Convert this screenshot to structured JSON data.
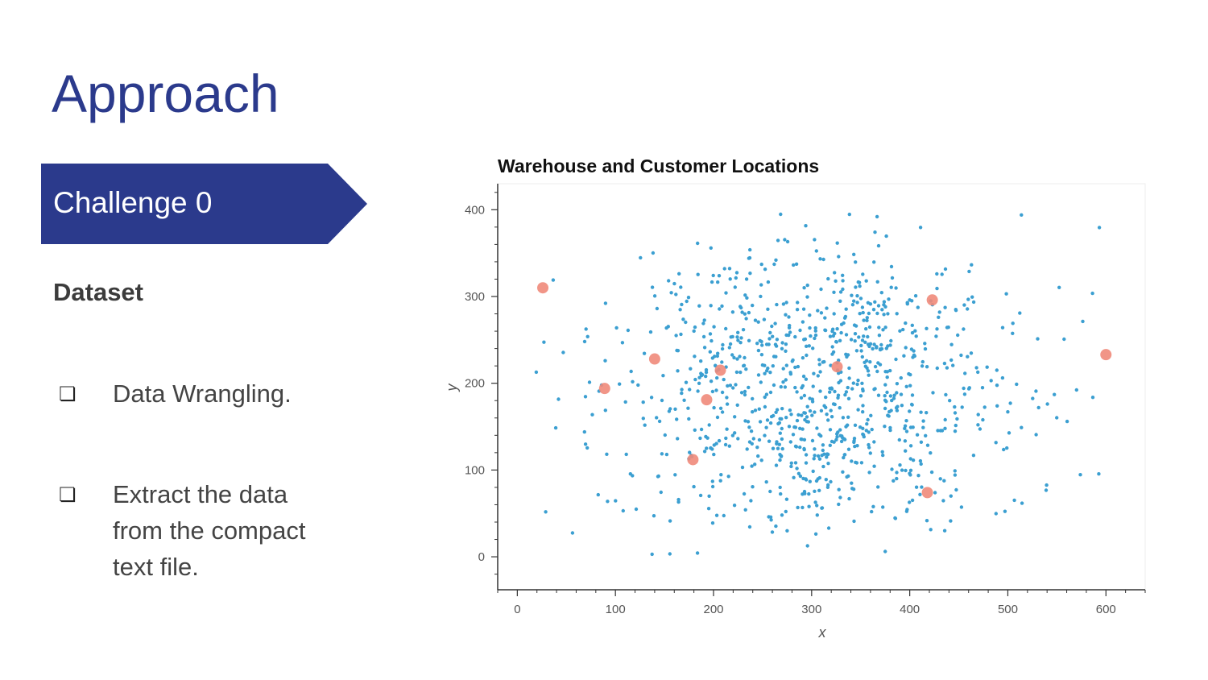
{
  "slide": {
    "title": "Approach",
    "banner_label": "Challenge 0",
    "section_label": "Dataset",
    "bullets": [
      {
        "icon": "checkbox-icon",
        "text": "Data Wrangling."
      },
      {
        "icon": "checkbox-icon",
        "text": "Extract the data\nfrom the compact\ntext file."
      }
    ]
  },
  "colors": {
    "title": "#2b3a8c",
    "banner": "#2b3a8c",
    "customer": "#3b9fd1",
    "warehouse": "#f08a7a"
  },
  "chart_data": {
    "type": "scatter",
    "title": "Warehouse and Customer Locations",
    "xlabel": "x",
    "ylabel": "y",
    "xlim": [
      -20,
      640
    ],
    "ylim": [
      -38,
      430
    ],
    "x_ticks": [
      0,
      100,
      200,
      300,
      400,
      500,
      600
    ],
    "y_ticks": [
      0,
      100,
      200,
      300,
      400
    ],
    "grid": false,
    "series": [
      {
        "role": "customers",
        "color": "#3b9fd1",
        "count": 1000,
        "x_range": [
          10,
          600
        ],
        "y_range": [
          0,
          395
        ],
        "dense_regions": [
          {
            "x": 225,
            "y": 250
          },
          {
            "x": 355,
            "y": 270
          },
          {
            "x": 345,
            "y": 195
          },
          {
            "x": 270,
            "y": 115
          },
          {
            "x": 370,
            "y": 110
          }
        ]
      },
      {
        "role": "warehouses",
        "color": "#f08a7a",
        "points": [
          {
            "x": 26,
            "y": 310
          },
          {
            "x": 89,
            "y": 194
          },
          {
            "x": 140,
            "y": 228
          },
          {
            "x": 179,
            "y": 112
          },
          {
            "x": 193,
            "y": 181
          },
          {
            "x": 207,
            "y": 215
          },
          {
            "x": 326,
            "y": 219
          },
          {
            "x": 418,
            "y": 74
          },
          {
            "x": 423,
            "y": 296
          },
          {
            "x": 600,
            "y": 233
          }
        ]
      }
    ]
  }
}
